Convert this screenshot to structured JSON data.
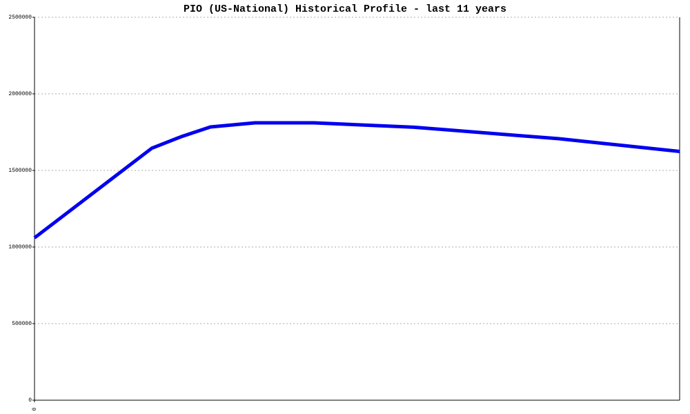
{
  "chart_data": {
    "type": "line",
    "title": "PIO (US-National) Historical Profile - last 11 years",
    "x": [
      0,
      2,
      2.5,
      3,
      3.76,
      4.76,
      6.47,
      8.94,
      11
    ],
    "series": [
      {
        "color": "#0000ee",
        "values": [
          1060000,
          1645000,
          1720000,
          1784000,
          1811000,
          1811000,
          1782000,
          1707000,
          1624000
        ]
      }
    ],
    "xlim": [
      0,
      11
    ],
    "xticks": [
      0
    ],
    "ylim": [
      0,
      2500000
    ],
    "yticks": [
      0,
      500000,
      1000000,
      1500000,
      2000000,
      2500000
    ],
    "grid": true
  }
}
